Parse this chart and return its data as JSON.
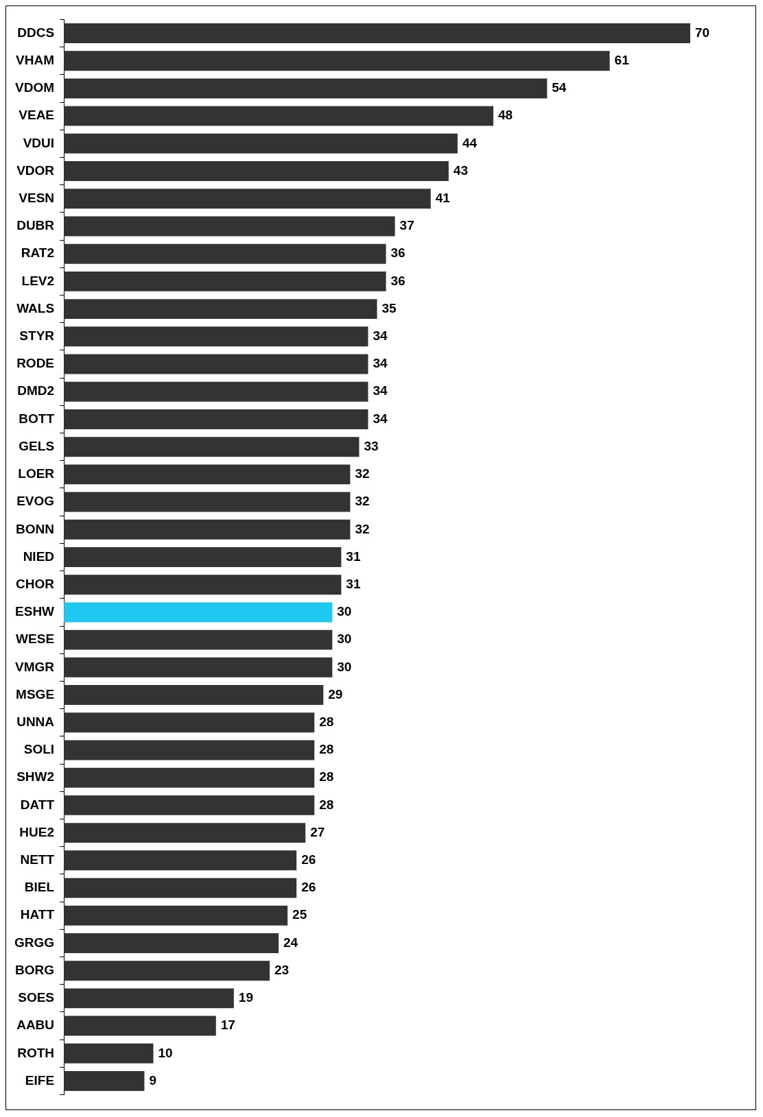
{
  "chart_data": {
    "type": "bar",
    "orientation": "horizontal",
    "data_labels": true,
    "categories": [
      "DDCS",
      "VHAM",
      "VDOM",
      "VEAE",
      "VDUI",
      "VDOR",
      "VESN",
      "DUBR",
      "RAT2",
      "LEV2",
      "WALS",
      "STYR",
      "RODE",
      "DMD2",
      "BOTT",
      "GELS",
      "LOER",
      "EVOG",
      "BONN",
      "NIED",
      "CHOR",
      "ESHW",
      "WESE",
      "VMGR",
      "MSGE",
      "UNNA",
      "SOLI",
      "SHW2",
      "DATT",
      "HUE2",
      "NETT",
      "BIEL",
      "HATT",
      "GRGG",
      "BORG",
      "SOES",
      "AABU",
      "ROTH",
      "EIFE"
    ],
    "values": [
      70,
      61,
      54,
      48,
      44,
      43,
      41,
      37,
      36,
      36,
      35,
      34,
      34,
      34,
      34,
      33,
      32,
      32,
      32,
      31,
      31,
      30,
      30,
      30,
      29,
      28,
      28,
      28,
      28,
      27,
      26,
      26,
      25,
      24,
      23,
      19,
      17,
      10,
      9
    ],
    "colors": [
      "#333333",
      "#333333",
      "#333333",
      "#333333",
      "#333333",
      "#333333",
      "#333333",
      "#333333",
      "#333333",
      "#333333",
      "#333333",
      "#333333",
      "#333333",
      "#333333",
      "#333333",
      "#333333",
      "#333333",
      "#333333",
      "#333333",
      "#333333",
      "#333333",
      "#1ec8f0",
      "#333333",
      "#333333",
      "#333333",
      "#333333",
      "#333333",
      "#333333",
      "#333333",
      "#333333",
      "#333333",
      "#333333",
      "#333333",
      "#333333",
      "#333333",
      "#333333",
      "#333333",
      "#333333",
      "#333333"
    ],
    "tick_labels": "y"
  }
}
